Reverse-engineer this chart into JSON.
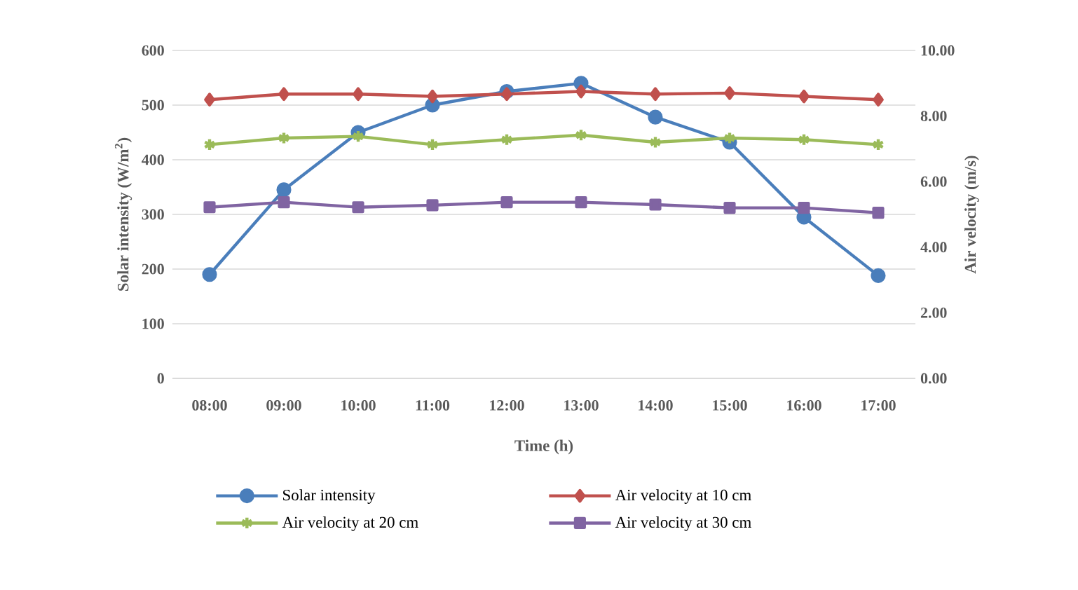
{
  "chart_data": {
    "type": "line",
    "xlabel": "Time (h)",
    "ylabel": "Solar intensity (W/m$^{2}$)",
    "y2label": "Air velocity (m/s)",
    "categories": [
      "08:00",
      "09:00",
      "10:00",
      "11:00",
      "12:00",
      "13:00",
      "14:00",
      "15:00",
      "16:00",
      "17:00"
    ],
    "series": [
      {
        "name": "Solar intensity",
        "color": "#4a7ebb",
        "marker": "circle",
        "axis": "y",
        "values": [
          190,
          345,
          450,
          500,
          525,
          540,
          478,
          432,
          295,
          188
        ]
      },
      {
        "name": "Air velocity at 10 cm",
        "color": "#c0504d",
        "marker": "diamond",
        "axis": "y2",
        "values": [
          8.5,
          8.67,
          8.67,
          8.6,
          8.67,
          8.75,
          8.67,
          8.7,
          8.6,
          8.5
        ]
      },
      {
        "name": "Air velocity at 20 cm",
        "color": "#9bbb59",
        "marker": "cross",
        "axis": "y2",
        "values": [
          7.13,
          7.33,
          7.38,
          7.13,
          7.28,
          7.42,
          7.2,
          7.33,
          7.28,
          7.13
        ]
      },
      {
        "name": "Air velocity at 30 cm",
        "color": "#8064a2",
        "marker": "square",
        "axis": "y2",
        "values": [
          5.22,
          5.37,
          5.22,
          5.28,
          5.37,
          5.37,
          5.3,
          5.2,
          5.2,
          5.05
        ]
      }
    ],
    "ylim": [
      0,
      600
    ],
    "yticks": [
      0,
      100,
      200,
      300,
      400,
      500,
      600
    ],
    "y2lim": [
      0,
      10
    ],
    "y2ticks": [
      {
        "value": 0,
        "label": "0.00"
      },
      {
        "value": 2,
        "label": "2.00"
      },
      {
        "value": 4,
        "label": "4.00"
      },
      {
        "value": 6,
        "label": "6.00"
      },
      {
        "value": 8,
        "label": "8.00"
      },
      {
        "value": 10,
        "label": "10.00"
      }
    ],
    "grid": "y",
    "legend": "bottom",
    "line_style": "solid"
  }
}
